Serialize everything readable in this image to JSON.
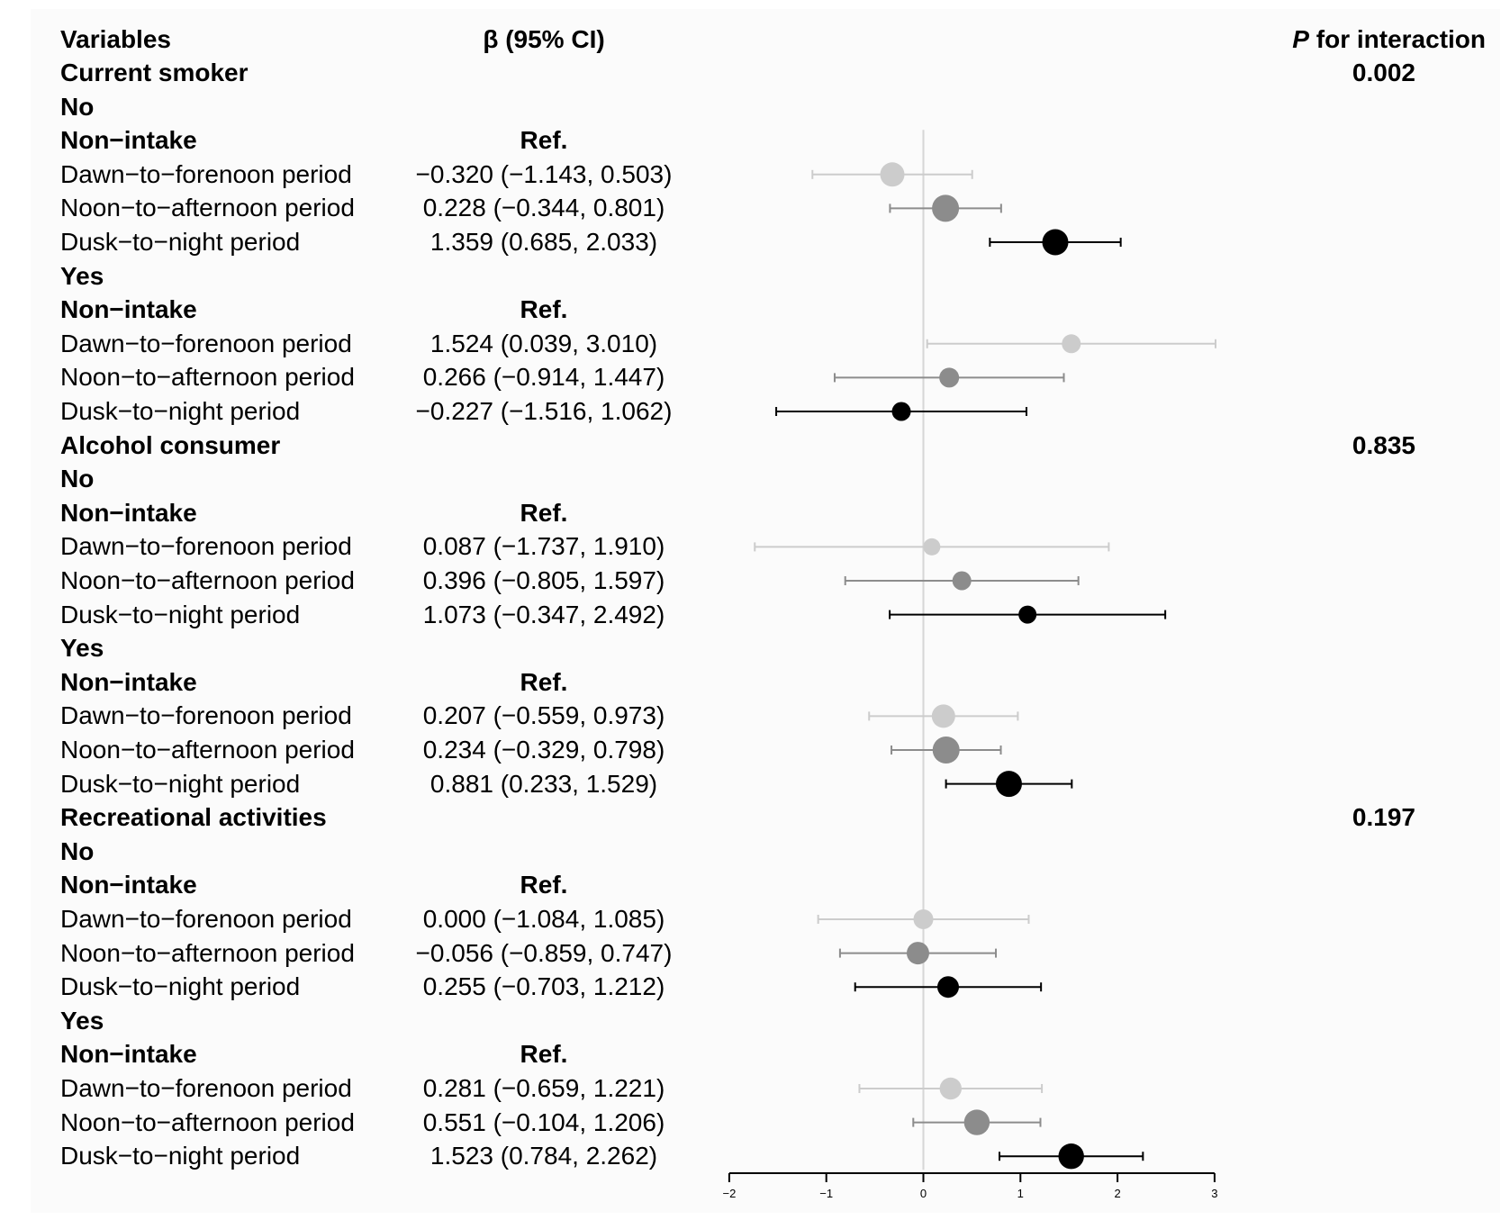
{
  "header": {
    "variables": "Variables",
    "beta": "β (95% CI)",
    "p_italic": "P",
    "p_rest": " for interaction"
  },
  "chart_data": {
    "type": "forest",
    "xlim": [
      -2,
      3
    ],
    "x_ticks": [
      "−2",
      "−1",
      "0",
      "1",
      "2",
      "3"
    ],
    "x_tick_values": [
      -2,
      -1,
      0,
      1,
      2,
      3
    ],
    "reference_line": 0,
    "colors": {
      "Dawn−to−forenoon period": "#cccccc",
      "Noon−to−afternoon period": "#8c8c8c",
      "Dusk−to−night period": "#000000"
    },
    "rows": [
      {
        "label": "Current smoker",
        "bold": true,
        "p": "0.002"
      },
      {
        "label": "No",
        "bold": true
      },
      {
        "label": "Non−intake",
        "bold": true,
        "ci_text": "Ref."
      },
      {
        "label": "Dawn−to−forenoon period",
        "ci_text": "−0.320 (−1.143, 0.503)",
        "est": -0.32,
        "lo": -1.143,
        "hi": 0.503,
        "weight": 0.85
      },
      {
        "label": "Noon−to−afternoon period",
        "ci_text": "0.228 (−0.344, 0.801)",
        "est": 0.228,
        "lo": -0.344,
        "hi": 0.801,
        "weight": 1.0
      },
      {
        "label": "Dusk−to−night period",
        "ci_text": "1.359 (0.685, 2.033)",
        "est": 1.359,
        "lo": 0.685,
        "hi": 2.033,
        "weight": 0.95
      },
      {
        "label": "Yes",
        "bold": true
      },
      {
        "label": "Non−intake",
        "bold": true,
        "ci_text": "Ref."
      },
      {
        "label": "Dawn−to−forenoon period",
        "ci_text": "1.524 (0.039, 3.010)",
        "est": 1.524,
        "lo": 0.039,
        "hi": 3.01,
        "weight": 0.55
      },
      {
        "label": "Noon−to−afternoon period",
        "ci_text": "0.266 (−0.914, 1.447)",
        "est": 0.266,
        "lo": -0.914,
        "hi": 1.447,
        "weight": 0.6
      },
      {
        "label": "Dusk−to−night period",
        "ci_text": "−0.227 (−1.516, 1.062)",
        "est": -0.227,
        "lo": -1.516,
        "hi": 1.062,
        "weight": 0.55
      },
      {
        "label": "Alcohol consumer",
        "bold": true,
        "p": "0.835"
      },
      {
        "label": "No",
        "bold": true
      },
      {
        "label": "Non−intake",
        "bold": true,
        "ci_text": "Ref."
      },
      {
        "label": "Dawn−to−forenoon period",
        "ci_text": "0.087 (−1.737, 1.910)",
        "est": 0.087,
        "lo": -1.737,
        "hi": 1.91,
        "weight": 0.45
      },
      {
        "label": "Noon−to−afternoon period",
        "ci_text": "0.396 (−0.805, 1.597)",
        "est": 0.396,
        "lo": -0.805,
        "hi": 1.597,
        "weight": 0.55
      },
      {
        "label": "Dusk−to−night period",
        "ci_text": "1.073 (−0.347, 2.492)",
        "est": 1.073,
        "lo": -0.347,
        "hi": 2.492,
        "weight": 0.5
      },
      {
        "label": "Yes",
        "bold": true
      },
      {
        "label": "Non−intake",
        "bold": true,
        "ci_text": "Ref."
      },
      {
        "label": "Dawn−to−forenoon period",
        "ci_text": "0.207 (−0.559, 0.973)",
        "est": 0.207,
        "lo": -0.559,
        "hi": 0.973,
        "weight": 0.8
      },
      {
        "label": "Noon−to−afternoon period",
        "ci_text": "0.234 (−0.329, 0.798)",
        "est": 0.234,
        "lo": -0.329,
        "hi": 0.798,
        "weight": 1.0
      },
      {
        "label": "Dusk−to−night period",
        "ci_text": "0.881 (0.233, 1.529)",
        "est": 0.881,
        "lo": 0.233,
        "hi": 1.529,
        "weight": 0.95
      },
      {
        "label": "Recreational activities",
        "bold": true,
        "p": "0.197"
      },
      {
        "label": "No",
        "bold": true
      },
      {
        "label": "Non−intake",
        "bold": true,
        "ci_text": "Ref."
      },
      {
        "label": "Dawn−to−forenoon period",
        "ci_text": "0.000 (−1.084, 1.085)",
        "est": 0.0,
        "lo": -1.084,
        "hi": 1.085,
        "weight": 0.6
      },
      {
        "label": "Noon−to−afternoon period",
        "ci_text": "−0.056 (−0.859, 0.747)",
        "est": -0.056,
        "lo": -0.859,
        "hi": 0.747,
        "weight": 0.75
      },
      {
        "label": "Dusk−to−night period",
        "ci_text": "0.255 (−0.703, 1.212)",
        "est": 0.255,
        "lo": -0.703,
        "hi": 1.212,
        "weight": 0.7
      },
      {
        "label": "Yes",
        "bold": true
      },
      {
        "label": "Non−intake",
        "bold": true,
        "ci_text": "Ref."
      },
      {
        "label": "Dawn−to−forenoon period",
        "ci_text": "0.281 (−0.659, 1.221)",
        "est": 0.281,
        "lo": -0.659,
        "hi": 1.221,
        "weight": 0.72
      },
      {
        "label": "Noon−to−afternoon period",
        "ci_text": "0.551 (−0.104, 1.206)",
        "est": 0.551,
        "lo": -0.104,
        "hi": 1.206,
        "weight": 0.92
      },
      {
        "label": "Dusk−to−night period",
        "ci_text": "1.523 (0.784, 2.262)",
        "est": 1.523,
        "lo": 0.784,
        "hi": 2.262,
        "weight": 0.92
      }
    ]
  }
}
